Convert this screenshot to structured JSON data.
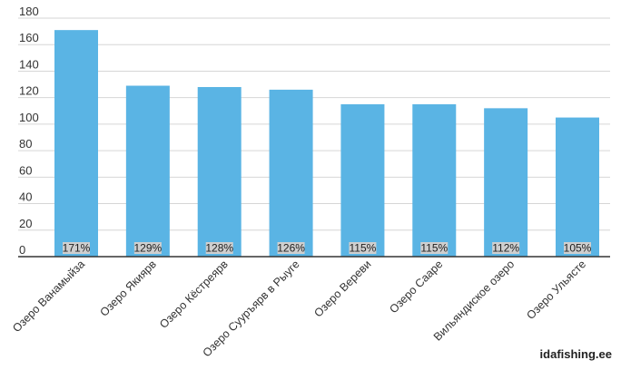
{
  "chart_data": {
    "type": "bar",
    "categories": [
      "Озеро Ванамыйза",
      "Озеро Якиярв",
      "Озеро Кёстреярв",
      "Озеро Сууръярв в Рыуге",
      "Озеро Вереви",
      "Озеро Сааре",
      "Вильяндиское озеро",
      "Озеро Ульясте"
    ],
    "values": [
      171,
      129,
      128,
      126,
      115,
      115,
      112,
      105
    ],
    "data_labels": [
      "171%",
      "129%",
      "128%",
      "126%",
      "115%",
      "115%",
      "112%",
      "105%"
    ],
    "yticks": [
      0,
      20,
      40,
      60,
      80,
      100,
      120,
      140,
      160,
      180
    ],
    "ylim": [
      0,
      180
    ],
    "title": "",
    "xlabel": "",
    "ylabel": "",
    "grid": true,
    "bar_color": "#5ab4e4"
  },
  "watermark": "idafishing.ee"
}
